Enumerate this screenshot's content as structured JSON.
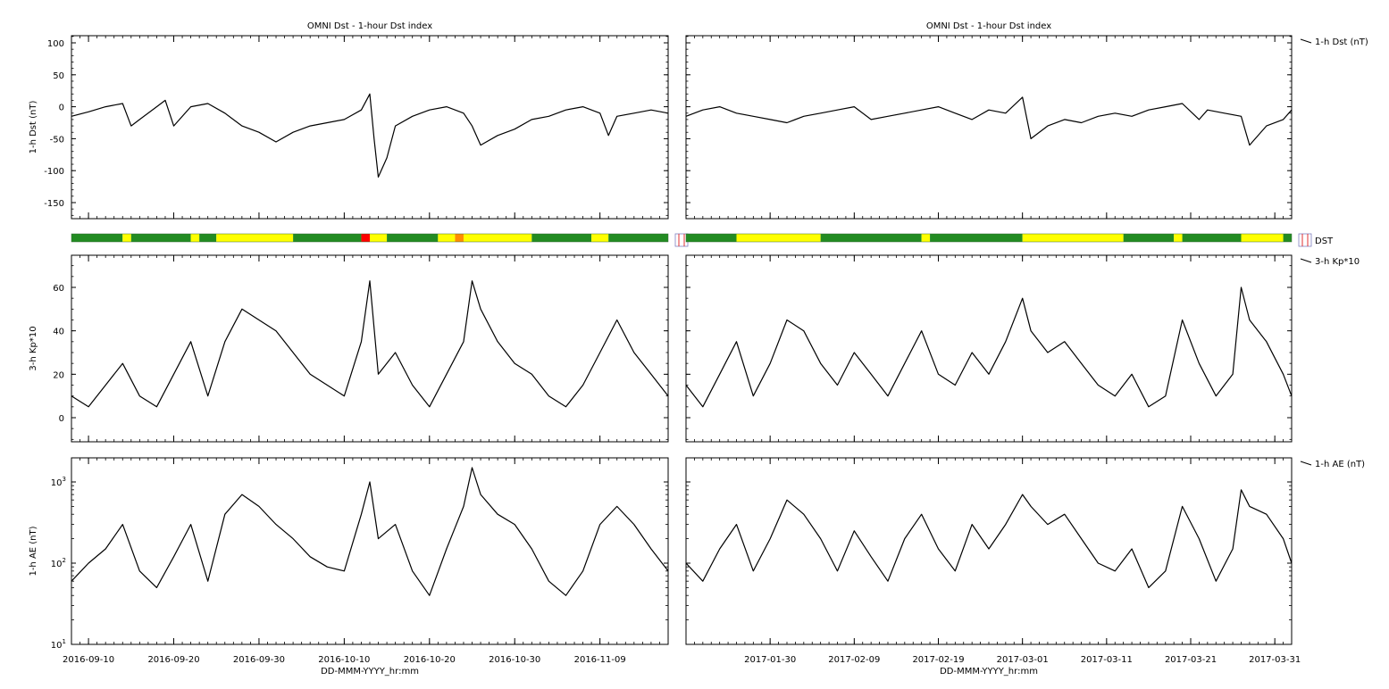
{
  "chart_data": [
    {
      "type": "line",
      "panel": "left",
      "title": "OMNI Dst - 1-hour Dst index",
      "xlabel": "DD-MMM-YYYY_hr:mm",
      "x_range": [
        "2016-09-08",
        "2016-11-17"
      ],
      "x_ticks": [
        "2016-09-10",
        "2016-09-20",
        "2016-09-30",
        "2016-10-10",
        "2016-10-20",
        "2016-10-30",
        "2016-11-09"
      ],
      "grid": false,
      "subplots": [
        {
          "name": "dst",
          "ylabel": "1-h Dst (nT)",
          "ylim": [
            -175,
            110
          ],
          "yticks": [
            100,
            50,
            0,
            -50,
            -100,
            -150
          ],
          "legend": "",
          "series": [
            {
              "name": "",
              "x": [
                "2016-09-08",
                "2016-09-10",
                "2016-09-12",
                "2016-09-14",
                "2016-09-15",
                "2016-09-16",
                "2016-09-18",
                "2016-09-19",
                "2016-09-20",
                "2016-09-22",
                "2016-09-24",
                "2016-09-26",
                "2016-09-28",
                "2016-09-30",
                "2016-10-02",
                "2016-10-04",
                "2016-10-06",
                "2016-10-08",
                "2016-10-10",
                "2016-10-12",
                "2016-10-13",
                "2016-10-13T12",
                "2016-10-14",
                "2016-10-15",
                "2016-10-16",
                "2016-10-18",
                "2016-10-20",
                "2016-10-22",
                "2016-10-24",
                "2016-10-25",
                "2016-10-26",
                "2016-10-28",
                "2016-10-30",
                "2016-11-01",
                "2016-11-03",
                "2016-11-05",
                "2016-11-07",
                "2016-11-09",
                "2016-11-10",
                "2016-11-11",
                "2016-11-13",
                "2016-11-15",
                "2016-11-17"
              ],
              "y": [
                -15,
                -8,
                0,
                5,
                -30,
                -20,
                0,
                10,
                -30,
                0,
                5,
                -10,
                -30,
                -40,
                -55,
                -40,
                -30,
                -25,
                -20,
                -5,
                20,
                -50,
                -110,
                -80,
                -30,
                -15,
                -5,
                0,
                -10,
                -30,
                -60,
                -45,
                -35,
                -20,
                -15,
                -5,
                0,
                -10,
                -45,
                -15,
                -10,
                -5,
                -10
              ]
            }
          ]
        },
        {
          "name": "kp",
          "ylabel": "3-h Kp*10",
          "ylim": [
            -12,
            72
          ],
          "yticks": [
            60,
            40,
            20,
            0
          ],
          "legend": "",
          "series": [
            {
              "name": "",
              "x": [
                "2016-09-08",
                "2016-09-10",
                "2016-09-12",
                "2016-09-14",
                "2016-09-16",
                "2016-09-18",
                "2016-09-20",
                "2016-09-22",
                "2016-09-24",
                "2016-09-26",
                "2016-09-28",
                "2016-09-30",
                "2016-10-02",
                "2016-10-04",
                "2016-10-06",
                "2016-10-08",
                "2016-10-10",
                "2016-10-12",
                "2016-10-13",
                "2016-10-14",
                "2016-10-16",
                "2016-10-18",
                "2016-10-20",
                "2016-10-22",
                "2016-10-24",
                "2016-10-25",
                "2016-10-26",
                "2016-10-28",
                "2016-10-30",
                "2016-11-01",
                "2016-11-03",
                "2016-11-05",
                "2016-11-07",
                "2016-11-09",
                "2016-11-11",
                "2016-11-13",
                "2016-11-15",
                "2016-11-17"
              ],
              "y": [
                10,
                5,
                15,
                25,
                10,
                5,
                20,
                35,
                10,
                35,
                50,
                45,
                40,
                30,
                20,
                15,
                10,
                35,
                63,
                20,
                30,
                15,
                5,
                20,
                35,
                63,
                50,
                35,
                25,
                20,
                10,
                5,
                15,
                30,
                45,
                30,
                20,
                10
              ]
            }
          ]
        },
        {
          "name": "ae",
          "ylabel": "1-h AE (nT)",
          "scale": "log",
          "ylim": [
            10,
            2000
          ],
          "yticks": [
            10,
            100,
            1000
          ],
          "legend": "",
          "series": [
            {
              "name": "",
              "x": [
                "2016-09-08",
                "2016-09-10",
                "2016-09-12",
                "2016-09-14",
                "2016-09-16",
                "2016-09-18",
                "2016-09-20",
                "2016-09-22",
                "2016-09-24",
                "2016-09-26",
                "2016-09-28",
                "2016-09-30",
                "2016-10-02",
                "2016-10-04",
                "2016-10-06",
                "2016-10-08",
                "2016-10-10",
                "2016-10-12",
                "2016-10-13",
                "2016-10-14",
                "2016-10-16",
                "2016-10-18",
                "2016-10-20",
                "2016-10-22",
                "2016-10-24",
                "2016-10-25",
                "2016-10-26",
                "2016-10-28",
                "2016-10-30",
                "2016-11-01",
                "2016-11-03",
                "2016-11-05",
                "2016-11-07",
                "2016-11-09",
                "2016-11-11",
                "2016-11-13",
                "2016-11-15",
                "2016-11-17"
              ],
              "y": [
                60,
                100,
                150,
                300,
                80,
                50,
                120,
                300,
                60,
                400,
                700,
                500,
                300,
                200,
                120,
                90,
                80,
                400,
                1000,
                200,
                300,
                80,
                40,
                150,
                500,
                1500,
                700,
                400,
                300,
                150,
                60,
                40,
                80,
                300,
                500,
                300,
                150,
                80
              ]
            }
          ]
        }
      ],
      "status_bar": {
        "colors": {
          "quiet": "#228b22",
          "active": "#ffff00",
          "storm": "#ff0000",
          "moderate": "#ff8c00"
        },
        "segments": [
          {
            "from": "2016-09-08",
            "to": "2016-09-14",
            "level": "quiet"
          },
          {
            "from": "2016-09-14",
            "to": "2016-09-15",
            "level": "active"
          },
          {
            "from": "2016-09-15",
            "to": "2016-09-22",
            "level": "quiet"
          },
          {
            "from": "2016-09-22",
            "to": "2016-09-23",
            "level": "active"
          },
          {
            "from": "2016-09-23",
            "to": "2016-09-25",
            "level": "quiet"
          },
          {
            "from": "2016-09-25",
            "to": "2016-10-04",
            "level": "active"
          },
          {
            "from": "2016-10-04",
            "to": "2016-10-12",
            "level": "quiet"
          },
          {
            "from": "2016-10-12",
            "to": "2016-10-13",
            "level": "storm"
          },
          {
            "from": "2016-10-13",
            "to": "2016-10-15",
            "level": "active"
          },
          {
            "from": "2016-10-15",
            "to": "2016-10-21",
            "level": "quiet"
          },
          {
            "from": "2016-10-21",
            "to": "2016-10-23",
            "level": "active"
          },
          {
            "from": "2016-10-23",
            "to": "2016-10-24",
            "level": "moderate"
          },
          {
            "from": "2016-10-24",
            "to": "2016-11-01",
            "level": "active"
          },
          {
            "from": "2016-11-01",
            "to": "2016-11-08",
            "level": "quiet"
          },
          {
            "from": "2016-11-08",
            "to": "2016-11-10",
            "level": "active"
          },
          {
            "from": "2016-11-10",
            "to": "2016-11-17",
            "level": "quiet"
          }
        ]
      }
    },
    {
      "type": "line",
      "panel": "right",
      "title": "OMNI Dst - 1-hour Dst index",
      "xlabel": "DD-MMM-YYYY_hr:mm",
      "x_range": [
        "2017-01-20",
        "2017-04-02"
      ],
      "x_ticks": [
        "2017-01-30",
        "2017-02-09",
        "2017-02-19",
        "2017-03-01",
        "2017-03-11",
        "2017-03-21",
        "2017-03-31"
      ],
      "grid": false,
      "subplots": [
        {
          "name": "dst",
          "ylabel": "",
          "ylim": [
            -175,
            110
          ],
          "yticks": [
            100,
            50,
            0,
            -50,
            -100,
            -150
          ],
          "legend": "1-h Dst (nT)",
          "series": [
            {
              "name": "",
              "x": [
                "2017-01-20",
                "2017-01-22",
                "2017-01-24",
                "2017-01-26",
                "2017-01-28",
                "2017-01-30",
                "2017-02-01",
                "2017-02-03",
                "2017-02-05",
                "2017-02-07",
                "2017-02-09",
                "2017-02-11",
                "2017-02-13",
                "2017-02-15",
                "2017-02-17",
                "2017-02-19",
                "2017-02-21",
                "2017-02-23",
                "2017-02-25",
                "2017-02-27",
                "2017-03-01",
                "2017-03-02",
                "2017-03-04",
                "2017-03-06",
                "2017-03-08",
                "2017-03-10",
                "2017-03-12",
                "2017-03-14",
                "2017-03-16",
                "2017-03-18",
                "2017-03-20",
                "2017-03-22",
                "2017-03-23",
                "2017-03-25",
                "2017-03-27",
                "2017-03-28",
                "2017-03-30",
                "2017-04-01",
                "2017-04-02"
              ],
              "y": [
                -15,
                -5,
                0,
                -10,
                -15,
                -20,
                -25,
                -15,
                -10,
                -5,
                0,
                -20,
                -15,
                -10,
                -5,
                0,
                -10,
                -20,
                -5,
                -10,
                15,
                -50,
                -30,
                -20,
                -25,
                -15,
                -10,
                -15,
                -5,
                0,
                5,
                -20,
                -5,
                -10,
                -15,
                -60,
                -30,
                -20,
                -5
              ]
            }
          ]
        },
        {
          "name": "kp",
          "ylabel": "",
          "ylim": [
            -12,
            72
          ],
          "yticks": [
            60,
            40,
            20,
            0
          ],
          "legend": "3-h Kp*10",
          "series": [
            {
              "name": "",
              "x": [
                "2017-01-20",
                "2017-01-22",
                "2017-01-24",
                "2017-01-26",
                "2017-01-28",
                "2017-01-30",
                "2017-02-01",
                "2017-02-03",
                "2017-02-05",
                "2017-02-07",
                "2017-02-09",
                "2017-02-11",
                "2017-02-13",
                "2017-02-15",
                "2017-02-17",
                "2017-02-19",
                "2017-02-21",
                "2017-02-23",
                "2017-02-25",
                "2017-02-27",
                "2017-03-01",
                "2017-03-02",
                "2017-03-04",
                "2017-03-06",
                "2017-03-08",
                "2017-03-10",
                "2017-03-12",
                "2017-03-14",
                "2017-03-16",
                "2017-03-18",
                "2017-03-20",
                "2017-03-22",
                "2017-03-24",
                "2017-03-26",
                "2017-03-27",
                "2017-03-28",
                "2017-03-30",
                "2017-04-01",
                "2017-04-02"
              ],
              "y": [
                15,
                5,
                20,
                35,
                10,
                25,
                45,
                40,
                25,
                15,
                30,
                20,
                10,
                25,
                40,
                20,
                15,
                30,
                20,
                35,
                55,
                40,
                30,
                35,
                25,
                15,
                10,
                20,
                5,
                10,
                45,
                25,
                10,
                20,
                60,
                45,
                35,
                20,
                10
              ]
            }
          ]
        },
        {
          "name": "ae",
          "ylabel": "",
          "scale": "log",
          "ylim": [
            10,
            2000
          ],
          "yticks": [
            10,
            100,
            1000
          ],
          "legend": "1-h AE (nT)",
          "series": [
            {
              "name": "",
              "x": [
                "2017-01-20",
                "2017-01-22",
                "2017-01-24",
                "2017-01-26",
                "2017-01-28",
                "2017-01-30",
                "2017-02-01",
                "2017-02-03",
                "2017-02-05",
                "2017-02-07",
                "2017-02-09",
                "2017-02-11",
                "2017-02-13",
                "2017-02-15",
                "2017-02-17",
                "2017-02-19",
                "2017-02-21",
                "2017-02-23",
                "2017-02-25",
                "2017-02-27",
                "2017-03-01",
                "2017-03-02",
                "2017-03-04",
                "2017-03-06",
                "2017-03-08",
                "2017-03-10",
                "2017-03-12",
                "2017-03-14",
                "2017-03-16",
                "2017-03-18",
                "2017-03-20",
                "2017-03-22",
                "2017-03-24",
                "2017-03-26",
                "2017-03-27",
                "2017-03-28",
                "2017-03-30",
                "2017-04-01",
                "2017-04-02"
              ],
              "y": [
                100,
                60,
                150,
                300,
                80,
                200,
                600,
                400,
                200,
                80,
                250,
                120,
                60,
                200,
                400,
                150,
                80,
                300,
                150,
                300,
                700,
                500,
                300,
                400,
                200,
                100,
                80,
                150,
                50,
                80,
                500,
                200,
                60,
                150,
                800,
                500,
                400,
                200,
                100
              ]
            }
          ]
        }
      ],
      "status_bar": {
        "colors": {
          "quiet": "#228b22",
          "active": "#ffff00",
          "storm": "#ff0000",
          "moderate": "#ff8c00"
        },
        "legend": "DST",
        "segments": [
          {
            "from": "2017-01-20",
            "to": "2017-01-26",
            "level": "quiet"
          },
          {
            "from": "2017-01-26",
            "to": "2017-02-05",
            "level": "active"
          },
          {
            "from": "2017-02-05",
            "to": "2017-02-17",
            "level": "quiet"
          },
          {
            "from": "2017-02-17",
            "to": "2017-02-18",
            "level": "active"
          },
          {
            "from": "2017-02-18",
            "to": "2017-03-01",
            "level": "quiet"
          },
          {
            "from": "2017-03-01",
            "to": "2017-03-13",
            "level": "active"
          },
          {
            "from": "2017-03-13",
            "to": "2017-03-19",
            "level": "quiet"
          },
          {
            "from": "2017-03-19",
            "to": "2017-03-20",
            "level": "active"
          },
          {
            "from": "2017-03-20",
            "to": "2017-03-27",
            "level": "quiet"
          },
          {
            "from": "2017-03-27",
            "to": "2017-04-01",
            "level": "active"
          },
          {
            "from": "2017-04-01",
            "to": "2017-04-02",
            "level": "quiet"
          }
        ]
      }
    }
  ]
}
